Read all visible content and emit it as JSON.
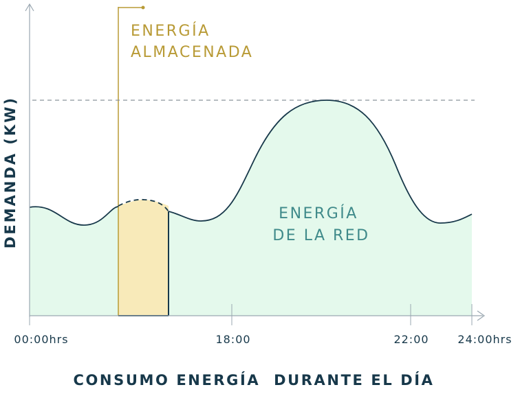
{
  "chart_data": {
    "type": "area",
    "title": "CONSUMO ENERGÍA  DURANTE EL DÍA",
    "ylabel": "DEMANDA (KW)",
    "x_ticks": [
      "00:00hrs",
      "18:00",
      "22:00",
      "24:00hrs"
    ],
    "annotations": {
      "stored_line1": "ENERGÍA",
      "stored_line2": "ALMACENADA",
      "grid_line1": "ENERGÍA",
      "grid_line2": "DE LA RED"
    },
    "colors": {
      "grid_fill": "#e4f9ec",
      "stored_fill": "#f8eab9",
      "stored_stroke": "#b89a35",
      "curve": "#17384a",
      "axis": "#9aa7b1",
      "label_dark": "#17384a",
      "label_teal": "#3f8a8a"
    }
  }
}
